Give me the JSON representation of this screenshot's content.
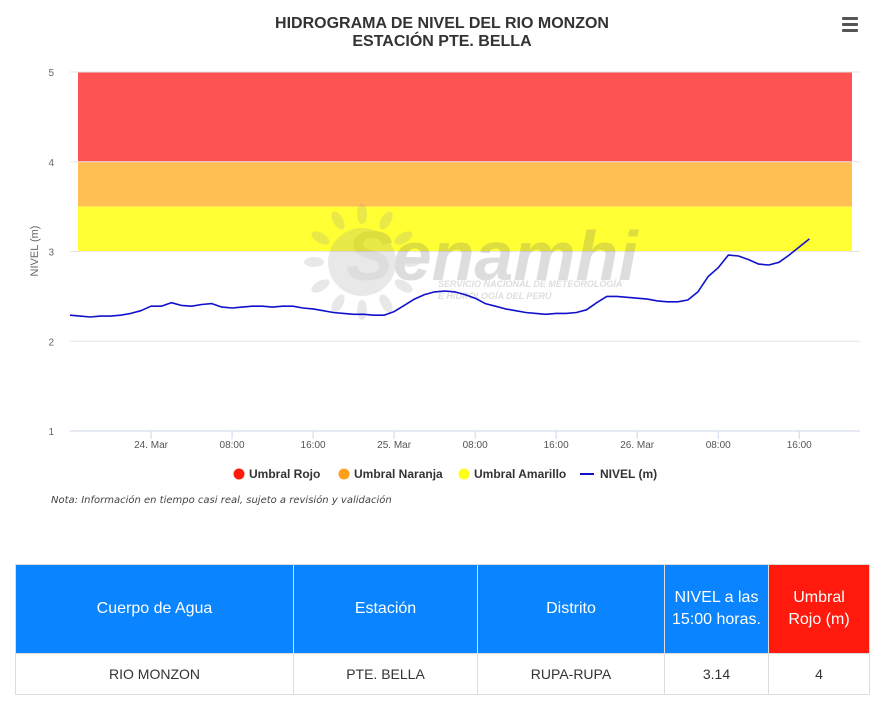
{
  "chart_data": {
    "type": "line",
    "title": "HIDROGRAMA DE NIVEL DEL RIO MONZON",
    "subtitle": "ESTACIÓN PTE. BELLA",
    "ylabel": "NIVEL (m)",
    "xlabel": "",
    "ylim": [
      1,
      5
    ],
    "yticks": [
      "1",
      "2",
      "3",
      "4",
      "5"
    ],
    "xtick_labels": [
      "24. Mar",
      "08:00",
      "16:00",
      "25. Mar",
      "08:00",
      "16:00",
      "26. Mar",
      "08:00",
      "16:00"
    ],
    "xtick_hours": [
      24,
      32,
      40,
      48,
      56,
      64,
      72,
      80,
      88
    ],
    "xlim_hours": [
      16,
      94
    ],
    "bands": [
      {
        "name": "Umbral Rojo",
        "from": 4,
        "to": 5,
        "color": "#ff5252"
      },
      {
        "name": "Umbral Naranja",
        "from": 3.5,
        "to": 4,
        "color": "#ffbf52"
      },
      {
        "name": "Umbral Amarillo",
        "from": 3,
        "to": 3.5,
        "color": "#ffff33"
      }
    ],
    "legend": [
      {
        "name": "Umbral Rojo",
        "color": "#ff1a0d",
        "marker": "circle"
      },
      {
        "name": "Umbral Naranja",
        "color": "#ffa01a",
        "marker": "circle"
      },
      {
        "name": "Umbral Amarillo",
        "color": "#ffff1a",
        "marker": "circle"
      },
      {
        "name": "NIVEL (m)",
        "color": "#1111cc",
        "marker": "line"
      }
    ],
    "series": [
      {
        "name": "NIVEL (m)",
        "color": "#1111cc",
        "x_hours": [
          16,
          17,
          18,
          19,
          20,
          21,
          22,
          23,
          24,
          25,
          26,
          27,
          28,
          29,
          30,
          31,
          32,
          33,
          34,
          35,
          36,
          37,
          38,
          39,
          40,
          41,
          42,
          43,
          44,
          45,
          46,
          47,
          48,
          49,
          50,
          51,
          52,
          53,
          54,
          55,
          56,
          57,
          58,
          59,
          60,
          61,
          62,
          63,
          64,
          65,
          66,
          67,
          68,
          69,
          70,
          71,
          72,
          73,
          74,
          75,
          76,
          77,
          78,
          79,
          80,
          81,
          82,
          83,
          84,
          85,
          86,
          87,
          88,
          89
        ],
        "values": [
          2.29,
          2.28,
          2.27,
          2.28,
          2.28,
          2.29,
          2.31,
          2.34,
          2.39,
          2.39,
          2.43,
          2.4,
          2.39,
          2.41,
          2.42,
          2.38,
          2.37,
          2.38,
          2.39,
          2.39,
          2.38,
          2.39,
          2.39,
          2.37,
          2.36,
          2.34,
          2.32,
          2.31,
          2.3,
          2.3,
          2.29,
          2.29,
          2.33,
          2.4,
          2.47,
          2.52,
          2.55,
          2.56,
          2.55,
          2.52,
          2.48,
          2.42,
          2.39,
          2.36,
          2.34,
          2.32,
          2.31,
          2.3,
          2.31,
          2.31,
          2.32,
          2.35,
          2.43,
          2.5,
          2.5,
          2.49,
          2.48,
          2.47,
          2.45,
          2.44,
          2.44,
          2.46,
          2.55,
          2.72,
          2.82,
          2.96,
          2.95,
          2.91,
          2.86,
          2.85,
          2.88,
          2.96,
          3.05,
          3.14
        ]
      }
    ]
  },
  "chart_note": "Nota: Información en tiempo casi real, sujeto a revisión y validación",
  "watermark": {
    "brand": "Senamhi",
    "line1": "SERVICIO NACIONAL DE METEOROLOGÍA",
    "line2": "E HIDROLOGÍA DEL PERÚ"
  },
  "menu_icon": "hamburger-menu-icon",
  "table": {
    "headers": [
      "Cuerpo de Agua",
      "Estación",
      "Distrito",
      "NIVEL a las 15:00 horas.",
      "Umbral Rojo (m)"
    ],
    "header_colors": [
      "#0a84ff",
      "#0a84ff",
      "#0a84ff",
      "#0a84ff",
      "#ff1a0d"
    ],
    "rows": [
      [
        "RIO MONZON",
        "PTE. BELLA",
        "RUPA-RUPA",
        "3.14",
        "4"
      ]
    ]
  }
}
